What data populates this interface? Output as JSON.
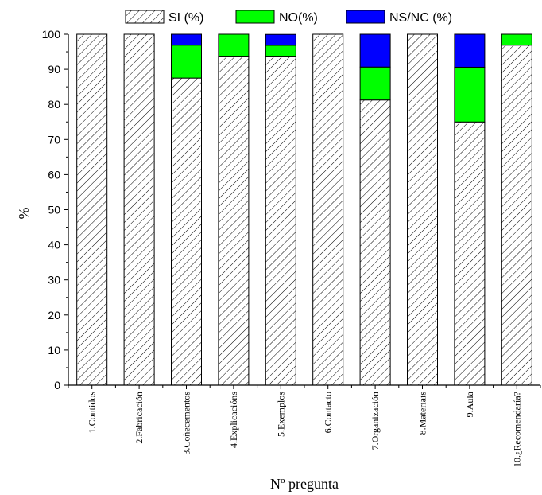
{
  "chart_data": {
    "type": "bar",
    "stacked": true,
    "categories": [
      "1.Contidos",
      "2.Fabricación",
      "3.Coñecementos",
      "4.Explicacións",
      "5.Exemplos",
      "6.Contacto",
      "7.Organización",
      "8.Materiais",
      "9.Aula",
      "10.¿Recomendaría?"
    ],
    "series": [
      {
        "name": "SI (%)",
        "values": [
          100,
          100,
          87.5,
          93.75,
          93.75,
          100,
          81.25,
          100,
          75,
          96.9
        ],
        "color": "#ffffff",
        "pattern": "hatch"
      },
      {
        "name": "NO(%)",
        "values": [
          0,
          0,
          9.4,
          6.25,
          3.1,
          0,
          9.4,
          0,
          15.6,
          3.1
        ],
        "color": "#00ff00"
      },
      {
        "name": "NS/NC (%)",
        "values": [
          0,
          0,
          3.1,
          0,
          3.1,
          0,
          9.35,
          0,
          9.4,
          0
        ],
        "color": "#0000ff"
      }
    ],
    "xlabel": "Nº pregunta",
    "ylabel": "%",
    "ylim": [
      0,
      100
    ],
    "yticks": [
      0,
      10,
      20,
      30,
      40,
      50,
      60,
      70,
      80,
      90,
      100
    ],
    "grid": false,
    "legend": "top"
  }
}
